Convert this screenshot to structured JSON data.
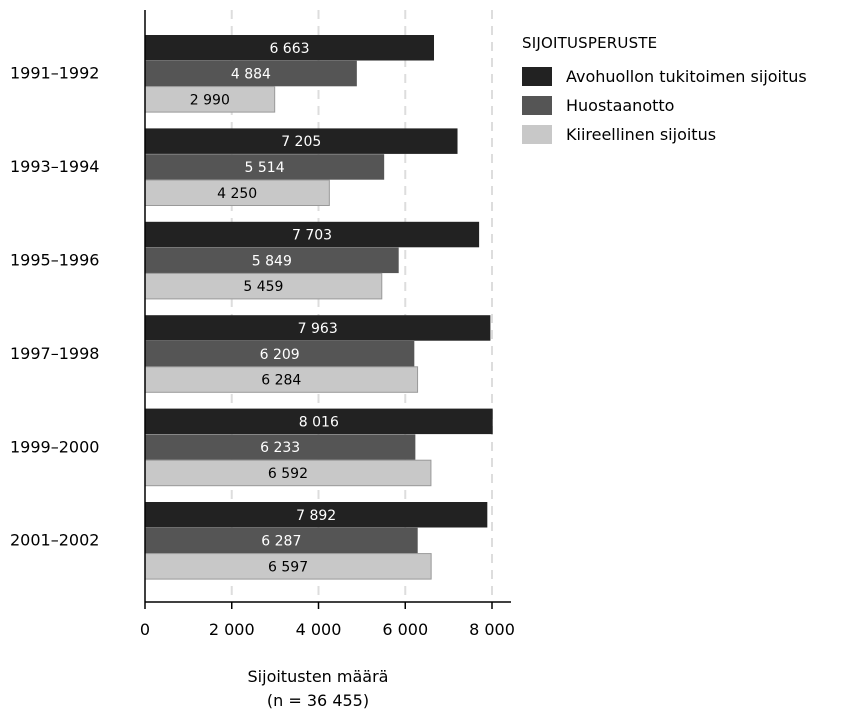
{
  "chart_data": {
    "type": "bar",
    "orientation": "horizontal",
    "categories": [
      "1991–1992",
      "1993–1994",
      "1995–1996",
      "1997–1998",
      "1999–2000",
      "2001–2002"
    ],
    "series": [
      {
        "name": "Avohuollon tukitoimen sijoitus",
        "color": "#222222",
        "label_color": "#ffffff",
        "values": [
          6663,
          7205,
          7703,
          7963,
          8016,
          7892
        ],
        "labels": [
          "6 663",
          "7 205",
          "7 703",
          "7 963",
          "8 016",
          "7 892"
        ]
      },
      {
        "name": "Huostaanotto",
        "color": "#555555",
        "label_color": "#ffffff",
        "values": [
          4884,
          5514,
          5849,
          6209,
          6233,
          6287
        ],
        "labels": [
          "4 884",
          "5 514",
          "5 849",
          "6 209",
          "6 233",
          "6 287"
        ]
      },
      {
        "name": "Kiireellinen sijoitus",
        "color": "#c8c8c8",
        "label_color": "#000000",
        "values": [
          2990,
          4250,
          5459,
          6284,
          6592,
          6597
        ],
        "labels": [
          "2 990",
          "4 250",
          "5 459",
          "6 284",
          "6 592",
          "6 597"
        ]
      }
    ],
    "xlim": [
      0,
      8000
    ],
    "xticks": [
      0,
      2000,
      4000,
      6000,
      8000
    ],
    "xtick_labels": [
      "0",
      "2 000",
      "4 000",
      "6 000",
      "8 000"
    ],
    "xlabel_line1": "Sijoitusten määrä",
    "xlabel_line2": "(n = 36 455)",
    "legend_title": "SIJOITUSPERUSTE",
    "legend_position": "top-right",
    "grid": "vertical-dashed"
  }
}
